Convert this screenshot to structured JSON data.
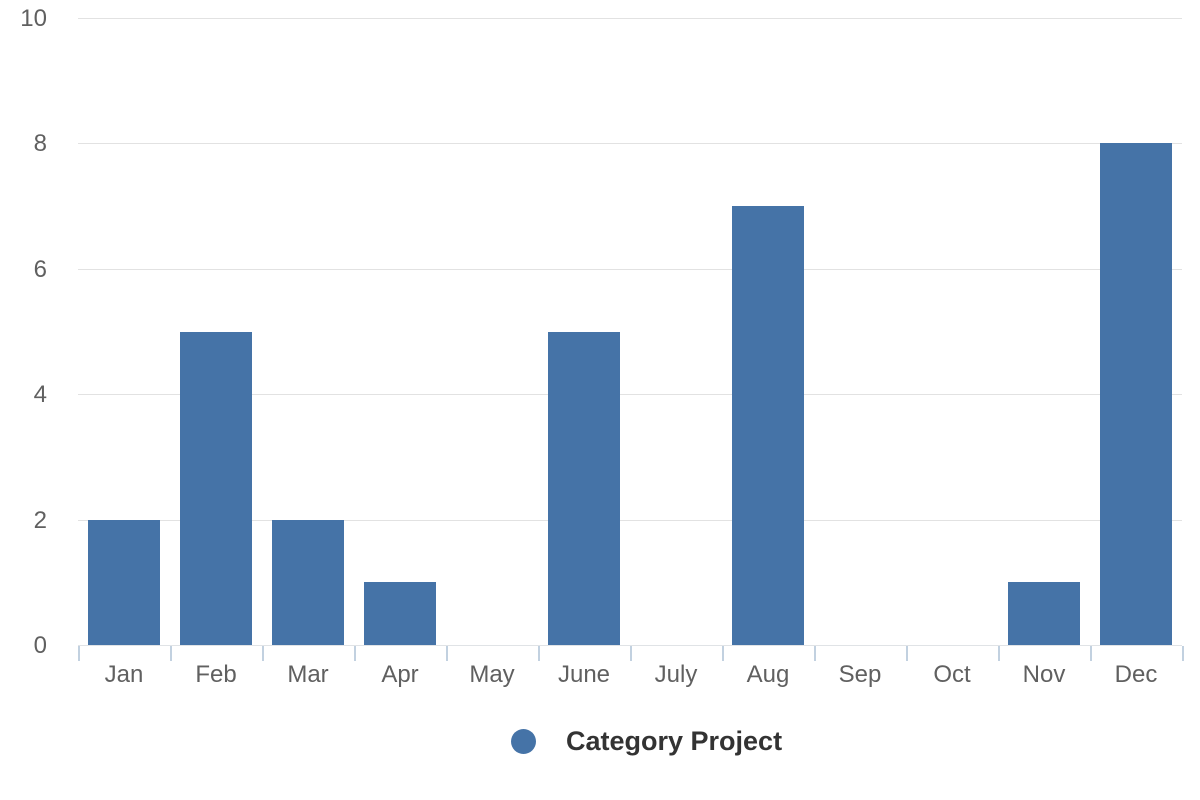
{
  "chart_data": {
    "type": "bar",
    "title": "",
    "categories": [
      "Jan",
      "Feb",
      "Mar",
      "Apr",
      "May",
      "June",
      "July",
      "Aug",
      "Sep",
      "Oct",
      "Nov",
      "Dec"
    ],
    "values": [
      2,
      5,
      2,
      1,
      0,
      5,
      0,
      7,
      0,
      0,
      1,
      8
    ],
    "series_name": "Category Project",
    "xlabel": "",
    "ylabel": "",
    "ylim": [
      0,
      10
    ],
    "yticks": [
      0,
      2,
      4,
      6,
      8,
      10
    ],
    "grid": true,
    "legend_position": "bottom",
    "colors": {
      "bar": "#4573a7",
      "gridline": "#e2e2e2",
      "axis_line": "#e0e3e6",
      "tick": "#c2d1e0",
      "axis_label": "#606060",
      "legend_text": "#333333"
    }
  }
}
